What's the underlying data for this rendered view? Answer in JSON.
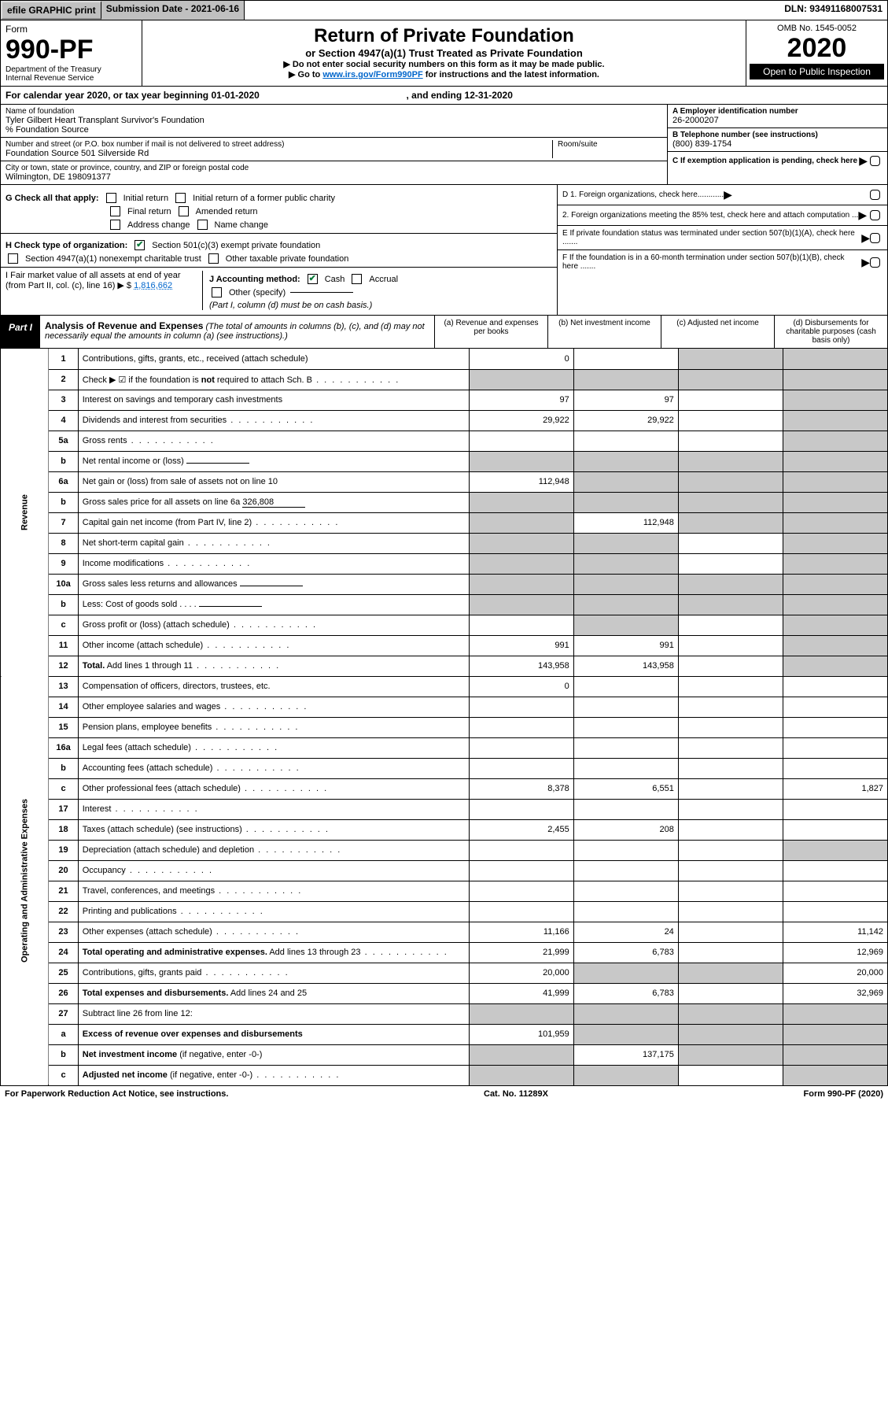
{
  "topbar": {
    "efile": "efile GRAPHIC print",
    "submission": "Submission Date - 2021-06-16",
    "dln": "DLN: 93491168007531"
  },
  "header": {
    "form_label": "Form",
    "form_number": "990-PF",
    "dept": "Department of the Treasury",
    "irs": "Internal Revenue Service",
    "title": "Return of Private Foundation",
    "subtitle": "or Section 4947(a)(1) Trust Treated as Private Foundation",
    "note1": "▶ Do not enter social security numbers on this form as it may be made public.",
    "note2_pre": "▶ Go to ",
    "note2_link": "www.irs.gov/Form990PF",
    "note2_post": " for instructions and the latest information.",
    "omb": "OMB No. 1545-0052",
    "year": "2020",
    "open": "Open to Public Inspection"
  },
  "calyear": "For calendar year 2020, or tax year beginning 01-01-2020",
  "calyear_end": ", and ending 12-31-2020",
  "info": {
    "name_label": "Name of foundation",
    "name1": "Tyler Gilbert Heart Transplant Survivor's Foundation",
    "name2": "% Foundation Source",
    "addr_label": "Number and street (or P.O. box number if mail is not delivered to street address)",
    "addr": "Foundation Source 501 Silverside Rd",
    "room_label": "Room/suite",
    "city_label": "City or town, state or province, country, and ZIP or foreign postal code",
    "city": "Wilmington, DE 198091377",
    "a_label": "A Employer identification number",
    "a_val": "26-2000207",
    "b_label": "B Telephone number (see instructions)",
    "b_val": "(800) 839-1754",
    "c_label": "C If exemption application is pending, check here"
  },
  "checks": {
    "g_label": "G Check all that apply:",
    "g_opts": [
      "Initial return",
      "Initial return of a former public charity",
      "Final return",
      "Amended return",
      "Address change",
      "Name change"
    ],
    "h_label": "H Check type of organization:",
    "h_opts": [
      "Section 501(c)(3) exempt private foundation",
      "Section 4947(a)(1) nonexempt charitable trust",
      "Other taxable private foundation"
    ],
    "i_label": "I Fair market value of all assets at end of year (from Part II, col. (c), line 16) ▶ $",
    "i_val": "1,816,662",
    "j_label": "J Accounting method:",
    "j_opts": [
      "Cash",
      "Accrual"
    ],
    "j_other": "Other (specify)",
    "j_note": "(Part I, column (d) must be on cash basis.)",
    "d1": "D 1. Foreign organizations, check here............",
    "d2": "2. Foreign organizations meeting the 85% test, check here and attach computation ...",
    "e": "E  If private foundation status was terminated under section 507(b)(1)(A), check here .......",
    "f": "F  If the foundation is in a 60-month termination under section 507(b)(1)(B), check here ......."
  },
  "part1": {
    "badge": "Part I",
    "title": "Analysis of Revenue and Expenses",
    "title_note": " (The total of amounts in columns (b), (c), and (d) may not necessarily equal the amounts in column (a) (see instructions).)",
    "cols": [
      "(a)   Revenue and expenses per books",
      "(b)  Net investment income",
      "(c)  Adjusted net income",
      "(d)  Disbursements for charitable purposes (cash basis only)"
    ]
  },
  "rows": [
    {
      "n": "1",
      "d": "Contributions, gifts, grants, etc., received (attach schedule)",
      "a": "0",
      "b": "",
      "c": "s",
      "dd": "s"
    },
    {
      "n": "2",
      "d": "Check ▶ ☑ if the foundation is <b>not</b> required to attach Sch. B",
      "dots": true,
      "a": "s",
      "b": "s",
      "c": "s",
      "dd": "s"
    },
    {
      "n": "3",
      "d": "Interest on savings and temporary cash investments",
      "a": "97",
      "b": "97",
      "c": "",
      "dd": "s"
    },
    {
      "n": "4",
      "d": "Dividends and interest from securities",
      "dots": true,
      "a": "29,922",
      "b": "29,922",
      "c": "",
      "dd": "s"
    },
    {
      "n": "5a",
      "d": "Gross rents",
      "dots": true,
      "a": "",
      "b": "",
      "c": "",
      "dd": "s"
    },
    {
      "n": "b",
      "d": "Net rental income or (loss)  <span class='underline-blank'></span>",
      "a": "s",
      "b": "s",
      "c": "s",
      "dd": "s"
    },
    {
      "n": "6a",
      "d": "Net gain or (loss) from sale of assets not on line 10",
      "a": "112,948",
      "b": "s",
      "c": "s",
      "dd": "s"
    },
    {
      "n": "b",
      "d": "Gross sales price for all assets on line 6a <span class='underline-blank'>326,808</span>",
      "a": "s",
      "b": "s",
      "c": "s",
      "dd": "s"
    },
    {
      "n": "7",
      "d": "Capital gain net income (from Part IV, line 2)",
      "dots": true,
      "a": "s",
      "b": "112,948",
      "c": "s",
      "dd": "s"
    },
    {
      "n": "8",
      "d": "Net short-term capital gain",
      "dots": true,
      "a": "s",
      "b": "s",
      "c": "",
      "dd": "s"
    },
    {
      "n": "9",
      "d": "Income modifications",
      "dots": true,
      "a": "s",
      "b": "s",
      "c": "",
      "dd": "s"
    },
    {
      "n": "10a",
      "d": "Gross sales less returns and allowances <span class='underline-blank'></span>",
      "a": "s",
      "b": "s",
      "c": "s",
      "dd": "s"
    },
    {
      "n": "b",
      "d": "Less: Cost of goods sold   .  .  .  . <span class='underline-blank'></span>",
      "a": "s",
      "b": "s",
      "c": "s",
      "dd": "s"
    },
    {
      "n": "c",
      "d": "Gross profit or (loss) (attach schedule)",
      "dots": true,
      "a": "",
      "b": "s",
      "c": "",
      "dd": "s"
    },
    {
      "n": "11",
      "d": "Other income (attach schedule)",
      "dots": true,
      "a": "991",
      "b": "991",
      "c": "",
      "dd": "s"
    },
    {
      "n": "12",
      "d": "<b>Total.</b> Add lines 1 through 11",
      "dots": true,
      "a": "143,958",
      "b": "143,958",
      "c": "",
      "dd": "s"
    },
    {
      "n": "13",
      "d": "Compensation of officers, directors, trustees, etc.",
      "a": "0",
      "b": "",
      "c": "",
      "dd": ""
    },
    {
      "n": "14",
      "d": "Other employee salaries and wages",
      "dots": true,
      "a": "",
      "b": "",
      "c": "",
      "dd": ""
    },
    {
      "n": "15",
      "d": "Pension plans, employee benefits",
      "dots": true,
      "a": "",
      "b": "",
      "c": "",
      "dd": ""
    },
    {
      "n": "16a",
      "d": "Legal fees (attach schedule)",
      "dots": true,
      "a": "",
      "b": "",
      "c": "",
      "dd": ""
    },
    {
      "n": "b",
      "d": "Accounting fees (attach schedule)",
      "dots": true,
      "a": "",
      "b": "",
      "c": "",
      "dd": ""
    },
    {
      "n": "c",
      "d": "Other professional fees (attach schedule)",
      "dots": true,
      "a": "8,378",
      "b": "6,551",
      "c": "",
      "dd": "1,827"
    },
    {
      "n": "17",
      "d": "Interest",
      "dots": true,
      "a": "",
      "b": "",
      "c": "",
      "dd": ""
    },
    {
      "n": "18",
      "d": "Taxes (attach schedule) (see instructions)",
      "dots": true,
      "a": "2,455",
      "b": "208",
      "c": "",
      "dd": ""
    },
    {
      "n": "19",
      "d": "Depreciation (attach schedule) and depletion",
      "dots": true,
      "a": "",
      "b": "",
      "c": "",
      "dd": "s"
    },
    {
      "n": "20",
      "d": "Occupancy",
      "dots": true,
      "a": "",
      "b": "",
      "c": "",
      "dd": ""
    },
    {
      "n": "21",
      "d": "Travel, conferences, and meetings",
      "dots": true,
      "a": "",
      "b": "",
      "c": "",
      "dd": ""
    },
    {
      "n": "22",
      "d": "Printing and publications",
      "dots": true,
      "a": "",
      "b": "",
      "c": "",
      "dd": ""
    },
    {
      "n": "23",
      "d": "Other expenses (attach schedule)",
      "dots": true,
      "a": "11,166",
      "b": "24",
      "c": "",
      "dd": "11,142"
    },
    {
      "n": "24",
      "d": "<b>Total operating and administrative expenses.</b> Add lines 13 through 23",
      "dots": true,
      "a": "21,999",
      "b": "6,783",
      "c": "",
      "dd": "12,969"
    },
    {
      "n": "25",
      "d": "Contributions, gifts, grants paid",
      "dots": true,
      "a": "20,000",
      "b": "s",
      "c": "s",
      "dd": "20,000"
    },
    {
      "n": "26",
      "d": "<b>Total expenses and disbursements.</b> Add lines 24 and 25",
      "a": "41,999",
      "b": "6,783",
      "c": "",
      "dd": "32,969"
    },
    {
      "n": "27",
      "d": "Subtract line 26 from line 12:",
      "a": "s",
      "b": "s",
      "c": "s",
      "dd": "s"
    },
    {
      "n": "a",
      "d": "<b>Excess of revenue over expenses and disbursements</b>",
      "a": "101,959",
      "b": "s",
      "c": "s",
      "dd": "s"
    },
    {
      "n": "b",
      "d": "<b>Net investment income</b> (if negative, enter -0-)",
      "a": "s",
      "b": "137,175",
      "c": "s",
      "dd": "s"
    },
    {
      "n": "c",
      "d": "<b>Adjusted net income</b> (if negative, enter -0-)",
      "dots": true,
      "a": "s",
      "b": "s",
      "c": "",
      "dd": "s"
    }
  ],
  "vert": {
    "rev": "Revenue",
    "exp": "Operating and Administrative Expenses"
  },
  "footer": {
    "left": "For Paperwork Reduction Act Notice, see instructions.",
    "mid": "Cat. No. 11289X",
    "right": "Form 990-PF (2020)"
  }
}
